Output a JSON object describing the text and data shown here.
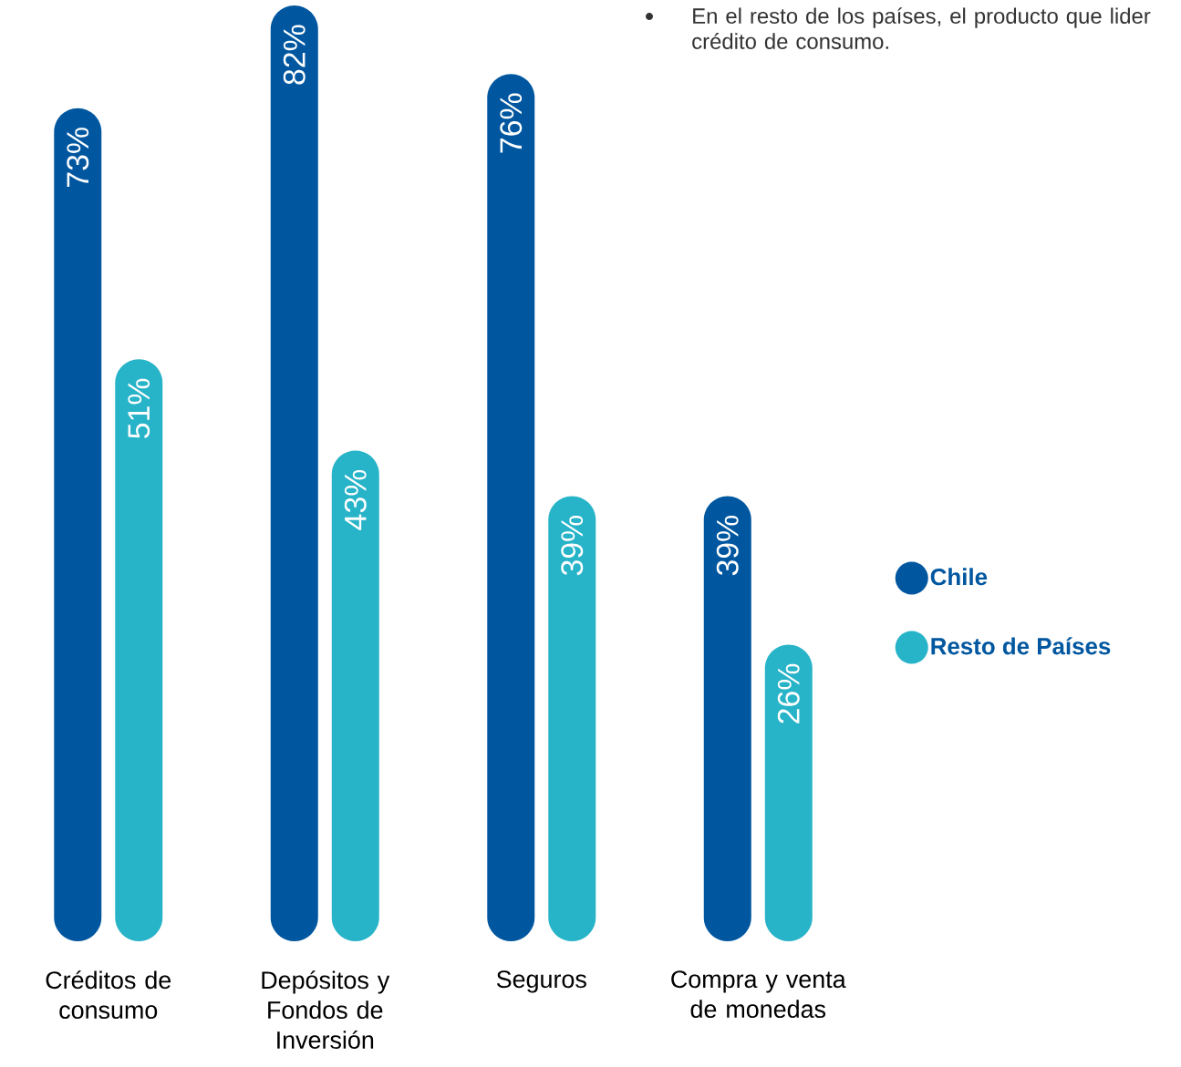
{
  "chart_data": {
    "type": "bar",
    "categories": [
      "Créditos de consumo",
      "Depósitos y Fondos de Inversión",
      "Seguros",
      "Compra y venta de monedas"
    ],
    "series": [
      {
        "name": "Chile",
        "color": "#0057a0",
        "values": [
          73,
          82,
          76,
          39
        ],
        "value_labels": [
          "73%",
          "82%",
          "76%",
          "39%"
        ]
      },
      {
        "name": "Resto de Países",
        "color": "#27b3c8",
        "values": [
          51,
          43,
          39,
          26
        ],
        "value_labels": [
          "51%",
          "43%",
          "39%",
          "26%"
        ]
      }
    ],
    "legend": "right",
    "annotations": [
      "En el resto de los países, el producto que lider crédito de consumo."
    ]
  }
}
